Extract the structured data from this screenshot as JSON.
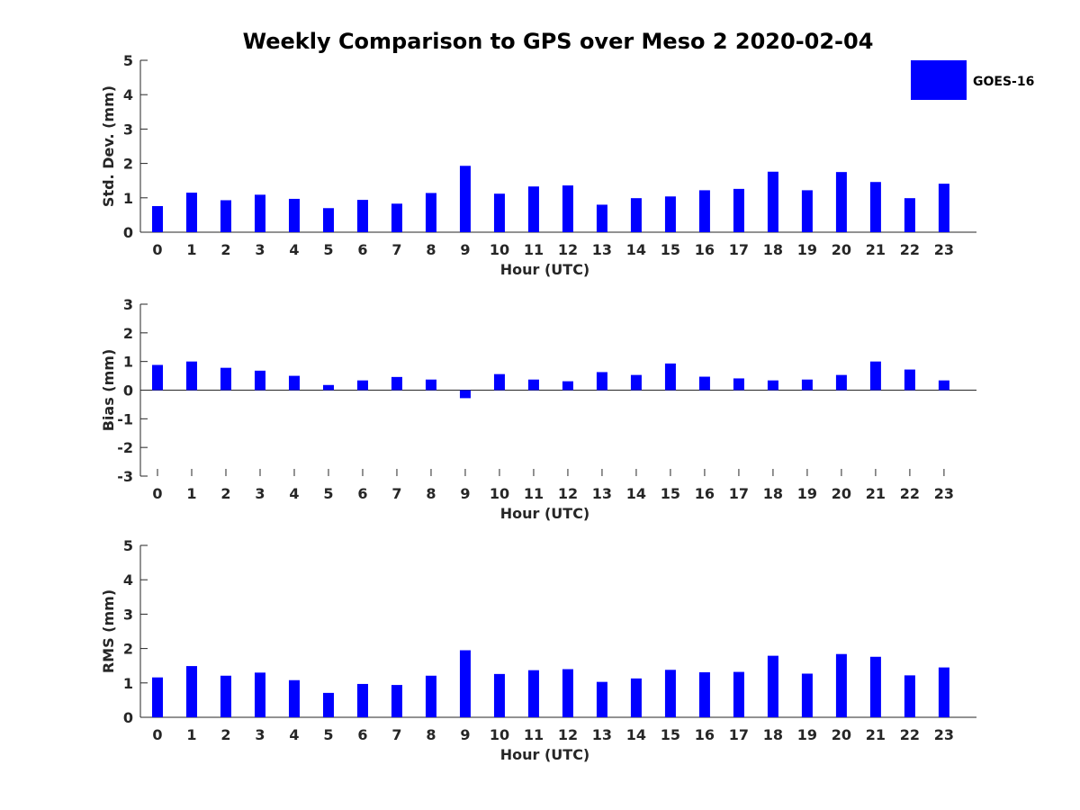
{
  "title": "Weekly Comparison to GPS over Meso 2 2020-02-04",
  "legend": {
    "label": "GOES-16",
    "color": "#0000ff",
    "placement": "top-right"
  },
  "bar_color": "#0000ff",
  "chart_data": [
    {
      "type": "bar",
      "xlabel": "Hour (UTC)",
      "ylabel": "Std. Dev. (mm)",
      "ylim": [
        0,
        5
      ],
      "yticks": [
        0,
        1,
        2,
        3,
        4,
        5
      ],
      "categories": [
        "0",
        "1",
        "2",
        "3",
        "4",
        "5",
        "6",
        "7",
        "8",
        "9",
        "10",
        "11",
        "12",
        "13",
        "14",
        "15",
        "16",
        "17",
        "18",
        "19",
        "20",
        "21",
        "22",
        "23"
      ],
      "series": [
        {
          "name": "GOES-16",
          "values": [
            0.76,
            1.15,
            0.93,
            1.09,
            0.97,
            0.7,
            0.94,
            0.83,
            1.14,
            1.93,
            1.12,
            1.33,
            1.36,
            0.8,
            0.99,
            1.04,
            1.22,
            1.26,
            1.76,
            1.22,
            1.75,
            1.46,
            0.99,
            1.41
          ]
        }
      ]
    },
    {
      "type": "bar",
      "xlabel": "Hour (UTC)",
      "ylabel": "Bias (mm)",
      "ylim": [
        -3,
        3
      ],
      "yticks": [
        -3,
        -2,
        -1,
        0,
        1,
        2,
        3
      ],
      "categories": [
        "0",
        "1",
        "2",
        "3",
        "4",
        "5",
        "6",
        "7",
        "8",
        "9",
        "10",
        "11",
        "12",
        "13",
        "14",
        "15",
        "16",
        "17",
        "18",
        "19",
        "20",
        "21",
        "22",
        "23"
      ],
      "series": [
        {
          "name": "GOES-16",
          "values": [
            0.88,
            1.0,
            0.78,
            0.68,
            0.5,
            0.18,
            0.34,
            0.46,
            0.37,
            -0.28,
            0.56,
            0.37,
            0.31,
            0.63,
            0.53,
            0.93,
            0.47,
            0.41,
            0.34,
            0.37,
            0.53,
            1.0,
            0.72,
            0.34
          ]
        }
      ]
    },
    {
      "type": "bar",
      "xlabel": "Hour (UTC)",
      "ylabel": "RMS (mm)",
      "ylim": [
        0,
        5
      ],
      "yticks": [
        0,
        1,
        2,
        3,
        4,
        5
      ],
      "categories": [
        "0",
        "1",
        "2",
        "3",
        "4",
        "5",
        "6",
        "7",
        "8",
        "9",
        "10",
        "11",
        "12",
        "13",
        "14",
        "15",
        "16",
        "17",
        "18",
        "19",
        "20",
        "21",
        "22",
        "23"
      ],
      "series": [
        {
          "name": "GOES-16",
          "values": [
            1.16,
            1.49,
            1.21,
            1.3,
            1.08,
            0.71,
            0.97,
            0.94,
            1.21,
            1.95,
            1.26,
            1.37,
            1.4,
            1.03,
            1.13,
            1.38,
            1.31,
            1.32,
            1.79,
            1.27,
            1.84,
            1.76,
            1.22,
            1.45
          ]
        }
      ]
    }
  ]
}
